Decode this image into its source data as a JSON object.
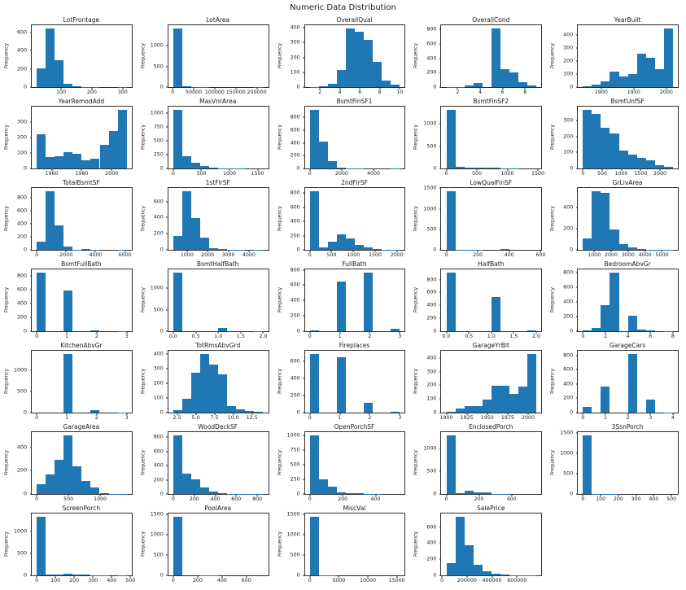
{
  "figure": {
    "title": "Numeric Data Distribution",
    "bar_color": "#1f77b4",
    "ylabel": "Frequency",
    "grid_rows": 7,
    "grid_cols": 5,
    "legend": "none",
    "plot_background": "#ffffff"
  },
  "chart_data": [
    {
      "type": "bar",
      "title": "LotFrontage",
      "ylabel": "Frequency",
      "xlim": [
        21,
        313
      ],
      "xticks": [
        100,
        200,
        300
      ],
      "yticks": [
        0,
        200,
        400,
        600
      ],
      "values": [
        210,
        650,
        300,
        40,
        12,
        3,
        1,
        0,
        0,
        2
      ]
    },
    {
      "type": "bar",
      "title": "LotArea",
      "ylabel": "Frequency",
      "xlim": [
        1300,
        215245
      ],
      "xticks": [
        0,
        50000,
        100000,
        150000,
        200000
      ],
      "yticks": [
        0,
        500,
        1000
      ],
      "values": [
        1420,
        25,
        6,
        2,
        1,
        1,
        0,
        0,
        0,
        2
      ]
    },
    {
      "type": "bar",
      "title": "OverallQual",
      "ylabel": "Frequency",
      "xlim": [
        1,
        10
      ],
      "xticks": [
        2,
        4,
        6,
        8,
        10
      ],
      "yticks": [
        0,
        100,
        200,
        300,
        400
      ],
      "values": [
        2,
        3,
        20,
        116,
        397,
        374,
        319,
        168,
        43,
        18
      ]
    },
    {
      "type": "bar",
      "title": "OverallCond",
      "ylabel": "Frequency",
      "xlim": [
        1,
        9
      ],
      "xticks": [
        2,
        4,
        6,
        8
      ],
      "yticks": [
        0,
        200,
        400,
        600,
        800
      ],
      "values": [
        1,
        5,
        25,
        57,
        0,
        821,
        252,
        205,
        72,
        22
      ]
    },
    {
      "type": "bar",
      "title": "YearBuilt",
      "ylabel": "Frequency",
      "xlim": [
        1872,
        2010
      ],
      "xticks": [
        1900,
        1950,
        2000
      ],
      "yticks": [
        0,
        100,
        200,
        300,
        400
      ],
      "values": [
        8,
        20,
        45,
        120,
        80,
        100,
        260,
        225,
        140,
        455
      ]
    },
    {
      "type": "bar",
      "title": "YearRemodAdd",
      "ylabel": "Frequency",
      "xlim": [
        1950,
        2010
      ],
      "xticks": [
        1960,
        1980,
        2000
      ],
      "yticks": [
        0,
        100,
        200,
        300
      ],
      "values": [
        220,
        75,
        80,
        105,
        95,
        50,
        65,
        150,
        240,
        380
      ]
    },
    {
      "type": "bar",
      "title": "MasVnrArea",
      "ylabel": "Frequency",
      "xlim": [
        0,
        1600
      ],
      "xticks": [
        0,
        500,
        1000,
        1500
      ],
      "yticks": [
        0,
        250,
        500,
        750,
        1000
      ],
      "values": [
        1070,
        215,
        105,
        40,
        15,
        6,
        3,
        2,
        1,
        1
      ]
    },
    {
      "type": "bar",
      "title": "BsmtFinSF1",
      "ylabel": "Frequency",
      "xlim": [
        0,
        5644
      ],
      "xticks": [
        0,
        2000,
        4000
      ],
      "yticks": [
        0,
        200,
        400,
        600,
        800
      ],
      "values": [
        920,
        420,
        110,
        8,
        2,
        1,
        0,
        0,
        0,
        1
      ]
    },
    {
      "type": "bar",
      "title": "BsmtFinSF2",
      "ylabel": "Frequency",
      "xlim": [
        0,
        1474
      ],
      "xticks": [
        0,
        500,
        1000,
        1500
      ],
      "yticks": [
        0,
        500,
        1000
      ],
      "values": [
        1320,
        45,
        25,
        20,
        15,
        10,
        3,
        2,
        1,
        0
      ]
    },
    {
      "type": "bar",
      "title": "BsmtUnfSF",
      "ylabel": "Frequency",
      "xlim": [
        0,
        2336
      ],
      "xticks": [
        0,
        500,
        1000,
        1500,
        2000
      ],
      "yticks": [
        0,
        100,
        200,
        300
      ],
      "values": [
        370,
        345,
        255,
        220,
        110,
        85,
        65,
        50,
        20,
        8
      ]
    },
    {
      "type": "bar",
      "title": "TotalBsmtSF",
      "ylabel": "Frequency",
      "xlim": [
        0,
        6110
      ],
      "xticks": [
        0,
        2000,
        4000,
        6000
      ],
      "yticks": [
        0,
        200,
        400,
        600,
        800
      ],
      "values": [
        125,
        905,
        370,
        55,
        3,
        10,
        1,
        0,
        0,
        1
      ]
    },
    {
      "type": "bar",
      "title": "1stFlrSF",
      "ylabel": "Frequency",
      "xlim": [
        334,
        4692
      ],
      "xticks": [
        1000,
        2000,
        3000,
        4000
      ],
      "yticks": [
        0,
        200,
        400,
        600
      ],
      "values": [
        170,
        730,
        390,
        150,
        20,
        6,
        2,
        1,
        0,
        1
      ]
    },
    {
      "type": "bar",
      "title": "2ndFlrSF",
      "ylabel": "Frequency",
      "xlim": [
        0,
        2065
      ],
      "xticks": [
        0,
        500,
        1000,
        1500,
        2000
      ],
      "yticks": [
        0,
        200,
        400,
        600,
        800
      ],
      "values": [
        830,
        30,
        120,
        215,
        160,
        65,
        30,
        10,
        3,
        1
      ]
    },
    {
      "type": "bar",
      "title": "LowQualFinSF",
      "ylabel": "Frequency",
      "xlim": [
        0,
        572
      ],
      "xticks": [
        0,
        200,
        400,
        600
      ],
      "yticks": [
        0,
        500,
        1000,
        1500
      ],
      "values": [
        1434,
        5,
        3,
        2,
        1,
        0,
        20,
        1,
        0,
        1
      ]
    },
    {
      "type": "bar",
      "title": "GrLivArea",
      "ylabel": "Frequency",
      "xlim": [
        334,
        5642
      ],
      "xticks": [
        1000,
        2000,
        3000,
        4000,
        5000
      ],
      "yticks": [
        0,
        200,
        400
      ],
      "values": [
        110,
        555,
        540,
        190,
        55,
        20,
        5,
        2,
        1,
        1
      ]
    },
    {
      "type": "bar",
      "title": "BsmtFullBath",
      "ylabel": "Frequency",
      "xlim": [
        0,
        3
      ],
      "xticks": [
        0,
        1,
        2,
        3
      ],
      "yticks": [
        0,
        200,
        400,
        600,
        800
      ],
      "values": [
        856,
        0,
        0,
        595,
        0,
        0,
        15,
        0,
        0,
        1
      ]
    },
    {
      "type": "bar",
      "title": "BsmtHalfBath",
      "ylabel": "Frequency",
      "xlim": [
        0,
        2
      ],
      "xticks": [
        "0.0",
        "0.5",
        "1.0",
        "1.5",
        "2.0"
      ],
      "yticks": [
        0,
        500,
        1000
      ],
      "values": [
        1378,
        0,
        0,
        0,
        0,
        80,
        0,
        0,
        0,
        2
      ]
    },
    {
      "type": "bar",
      "title": "FullBath",
      "ylabel": "Frequency",
      "xlim": [
        0,
        3
      ],
      "xticks": [
        0,
        1,
        2,
        3
      ],
      "yticks": [
        0,
        200,
        400,
        600,
        800
      ],
      "values": [
        9,
        0,
        0,
        650,
        0,
        0,
        768,
        0,
        0,
        33
      ]
    },
    {
      "type": "bar",
      "title": "HalfBath",
      "ylabel": "Frequency",
      "xlim": [
        0,
        2
      ],
      "xticks": [
        "0.0",
        "0.5",
        "1.0",
        "1.5",
        "2.0"
      ],
      "yticks": [
        0,
        200,
        400,
        600,
        800
      ],
      "values": [
        913,
        0,
        0,
        0,
        0,
        535,
        0,
        0,
        0,
        12
      ]
    },
    {
      "type": "bar",
      "title": "BedroomAbvGr",
      "ylabel": "Frequency",
      "xlim": [
        0,
        8
      ],
      "xticks": [
        0,
        2,
        4,
        6,
        8
      ],
      "yticks": [
        0,
        200,
        400,
        600,
        800
      ],
      "values": [
        6,
        50,
        358,
        804,
        0,
        213,
        21,
        7,
        0,
        1
      ]
    },
    {
      "type": "bar",
      "title": "KitchenAbvGr",
      "ylabel": "Frequency",
      "xlim": [
        0,
        3
      ],
      "xticks": [
        0,
        1,
        2,
        3
      ],
      "yticks": [
        0,
        500,
        1000
      ],
      "values": [
        1,
        0,
        0,
        1392,
        0,
        0,
        65,
        0,
        0,
        2
      ]
    },
    {
      "type": "bar",
      "title": "TotRmsAbvGrd",
      "ylabel": "Frequency",
      "xlim": [
        2,
        14
      ],
      "xticks": [
        "2.5",
        "5.0",
        "7.5",
        "10.0",
        "12.5"
      ],
      "yticks": [
        0,
        100,
        200,
        300,
        400
      ],
      "values": [
        17,
        97,
        275,
        402,
        330,
        263,
        47,
        20,
        12,
        4
      ]
    },
    {
      "type": "bar",
      "title": "Fireplaces",
      "ylabel": "Frequency",
      "xlim": [
        0,
        3
      ],
      "xticks": [
        0,
        1,
        2,
        3
      ],
      "yticks": [
        0,
        200,
        400,
        600
      ],
      "values": [
        690,
        0,
        0,
        650,
        0,
        0,
        115,
        0,
        0,
        5
      ]
    },
    {
      "type": "bar",
      "title": "GarageYrBlt",
      "ylabel": "Frequency",
      "xlim": [
        1900,
        2010
      ],
      "xticks": [
        1900,
        1925,
        1950,
        1975,
        2000
      ],
      "yticks": [
        0,
        100,
        200,
        300,
        400
      ],
      "values": [
        5,
        28,
        45,
        50,
        95,
        200,
        195,
        140,
        190,
        432
      ]
    },
    {
      "type": "bar",
      "title": "GarageCars",
      "ylabel": "Frequency",
      "xlim": [
        0,
        4
      ],
      "xticks": [
        0,
        1,
        2,
        3,
        4
      ],
      "yticks": [
        0,
        200,
        400,
        600,
        800
      ],
      "values": [
        81,
        0,
        369,
        0,
        0,
        824,
        0,
        181,
        0,
        5
      ]
    },
    {
      "type": "bar",
      "title": "GarageArea",
      "ylabel": "Frequency",
      "xlim": [
        0,
        1418
      ],
      "xticks": [
        0,
        500,
        1000
      ],
      "yticks": [
        0,
        200,
        400
      ],
      "values": [
        85,
        165,
        295,
        505,
        240,
        110,
        55,
        10,
        2,
        1
      ]
    },
    {
      "type": "bar",
      "title": "WoodDeckSF",
      "ylabel": "Frequency",
      "xlim": [
        0,
        857
      ],
      "xticks": [
        0,
        200,
        400,
        600,
        800
      ],
      "yticks": [
        0,
        200,
        400,
        600,
        800
      ],
      "values": [
        830,
        290,
        210,
        90,
        35,
        15,
        4,
        2,
        1,
        1
      ]
    },
    {
      "type": "bar",
      "title": "OpenPorchSF",
      "ylabel": "Frequency",
      "xlim": [
        0,
        547
      ],
      "xticks": [
        0,
        200,
        400
      ],
      "yticks": [
        0,
        250,
        500,
        750,
        1000
      ],
      "values": [
        1010,
        245,
        125,
        35,
        20,
        10,
        5,
        3,
        1,
        1
      ]
    },
    {
      "type": "bar",
      "title": "EnclosedPorch",
      "ylabel": "Frequency",
      "xlim": [
        0,
        552
      ],
      "xticks": [
        0,
        200,
        400
      ],
      "yticks": [
        0,
        500,
        1000
      ],
      "values": [
        1290,
        20,
        65,
        40,
        30,
        5,
        2,
        1,
        0,
        1
      ]
    },
    {
      "type": "bar",
      "title": "3SsnPorch",
      "ylabel": "Frequency",
      "xlim": [
        0,
        508
      ],
      "xticks": [
        0,
        100,
        200,
        300,
        400,
        500
      ],
      "yticks": [
        0,
        500,
        1000,
        1500
      ],
      "values": [
        1445,
        5,
        3,
        2,
        1,
        1,
        1,
        1,
        0,
        1
      ]
    },
    {
      "type": "bar",
      "title": "ScreenPorch",
      "ylabel": "Frequency",
      "xlim": [
        0,
        480
      ],
      "xticks": [
        0,
        100,
        200,
        300,
        400,
        500
      ],
      "yticks": [
        0,
        500,
        1000
      ],
      "values": [
        1344,
        10,
        20,
        35,
        25,
        15,
        5,
        3,
        1,
        2
      ]
    },
    {
      "type": "bar",
      "title": "PoolArea",
      "ylabel": "Frequency",
      "xlim": [
        0,
        738
      ],
      "xticks": [
        0,
        200,
        400,
        600
      ],
      "yticks": [
        0,
        500,
        1000,
        1500
      ],
      "values": [
        1453,
        0,
        0,
        2,
        2,
        1,
        1,
        0,
        0,
        1
      ]
    },
    {
      "type": "bar",
      "title": "MiscVal",
      "ylabel": "Frequency",
      "xlim": [
        0,
        15500
      ],
      "xticks": [
        0,
        5000,
        10000,
        15000
      ],
      "yticks": [
        0,
        500,
        1000,
        1500
      ],
      "values": [
        1450,
        5,
        2,
        1,
        0,
        1,
        0,
        0,
        0,
        1
      ]
    },
    {
      "type": "bar",
      "title": "SalePrice",
      "ylabel": "Frequency",
      "xlim": [
        34900,
        755000
      ],
      "xticks": [
        0,
        200000,
        400000,
        600000
      ],
      "yticks": [
        0,
        200,
        400,
        600
      ],
      "values": [
        150,
        730,
        375,
        135,
        50,
        20,
        10,
        5,
        2,
        1
      ]
    }
  ]
}
